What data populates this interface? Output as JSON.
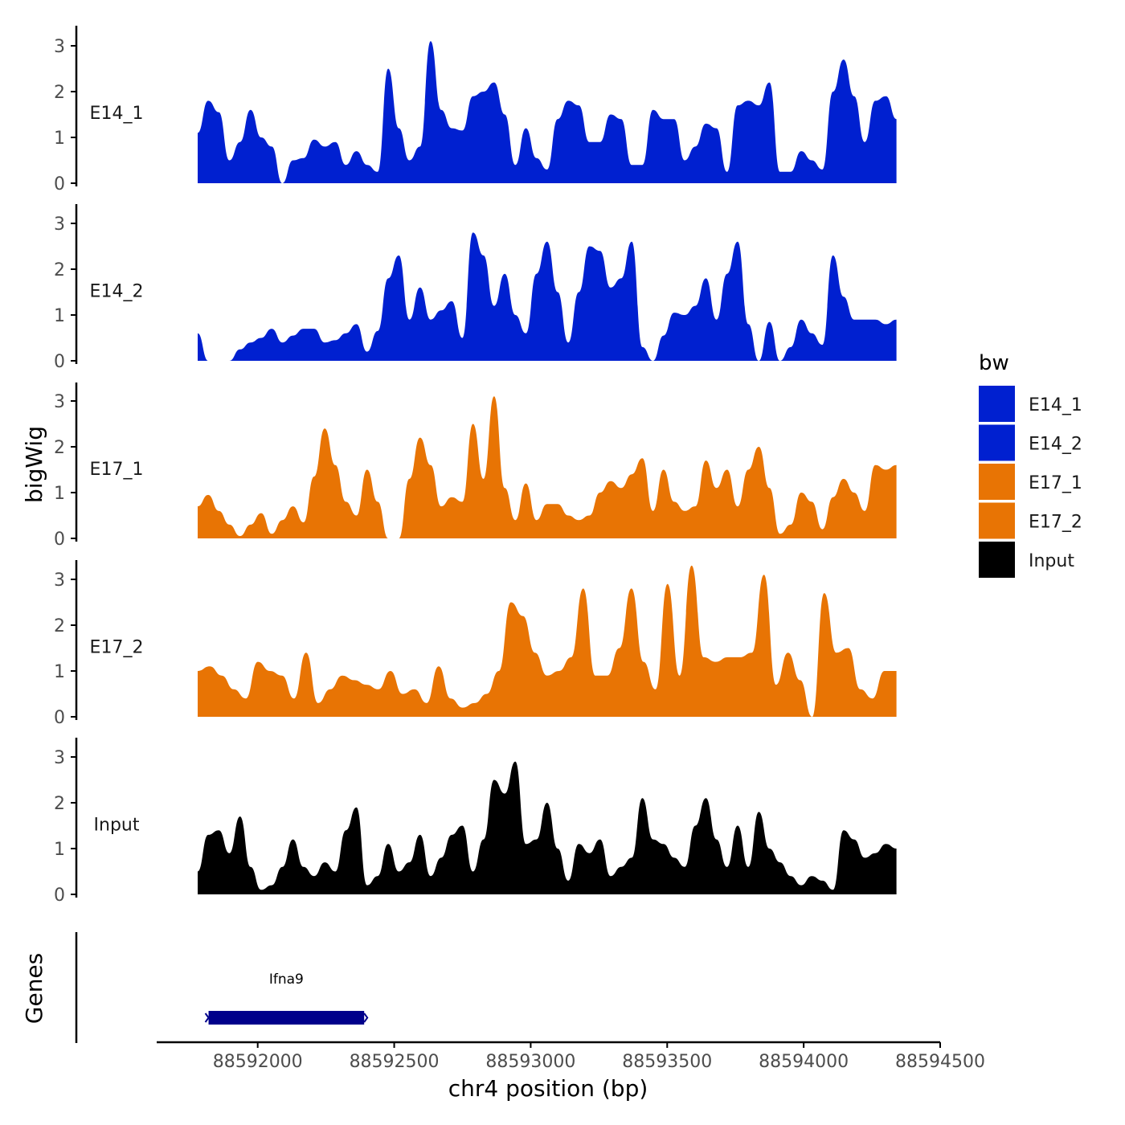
{
  "chart_data": {
    "type": "area",
    "title": "",
    "xlabel": "chr4 position (bp)",
    "ylabel": "bigWig",
    "genes_label": "Genes",
    "xlim": [
      88591630,
      88594500
    ],
    "x_ticks": [
      88592000,
      88592500,
      88593000,
      88593500,
      88594000,
      88594500
    ],
    "x_tick_labels": [
      "88592000",
      "88592500",
      "88593000",
      "88593500",
      "88594000",
      "88594500"
    ],
    "ylim": [
      0,
      3.4
    ],
    "y_ticks": [
      0,
      1,
      2,
      3
    ],
    "y_tick_labels": [
      "0",
      "1",
      "2",
      "3"
    ],
    "series_x_range": [
      88591780,
      88594340
    ],
    "legend": {
      "title": "bw",
      "position": "right",
      "entries": [
        {
          "label": "E14_1",
          "color": "#0020D0"
        },
        {
          "label": "E14_2",
          "color": "#0020D0"
        },
        {
          "label": "E17_1",
          "color": "#E87404"
        },
        {
          "label": "E17_2",
          "color": "#E87404"
        },
        {
          "label": "Input",
          "color": "#000000"
        }
      ]
    },
    "series": [
      {
        "name": "E14_1",
        "color": "#0020D0",
        "values": [
          1.1,
          1.8,
          1.55,
          0.5,
          0.9,
          1.6,
          1.0,
          0.8,
          0.0,
          0.5,
          0.55,
          0.95,
          0.8,
          0.9,
          0.4,
          0.7,
          0.4,
          0.25,
          2.5,
          1.2,
          0.5,
          0.8,
          3.1,
          1.6,
          1.2,
          1.15,
          1.9,
          2.0,
          2.2,
          1.5,
          0.4,
          1.2,
          0.55,
          0.3,
          1.4,
          1.8,
          1.7,
          0.9,
          0.9,
          1.5,
          1.4,
          0.4,
          0.4,
          1.6,
          1.4,
          1.4,
          0.5,
          0.8,
          1.3,
          1.2,
          0.25,
          1.7,
          1.8,
          1.7,
          2.2,
          0.25,
          0.25,
          0.7,
          0.5,
          0.3,
          2.0,
          2.7,
          1.9,
          0.9,
          1.8,
          1.9,
          1.4
        ]
      },
      {
        "name": "E14_2",
        "color": "#0020D0",
        "values": [
          0.6,
          0.0,
          0.0,
          0.0,
          0.25,
          0.4,
          0.5,
          0.7,
          0.4,
          0.55,
          0.7,
          0.7,
          0.4,
          0.45,
          0.6,
          0.8,
          0.2,
          0.65,
          1.8,
          2.3,
          0.9,
          1.6,
          0.9,
          1.1,
          1.3,
          0.5,
          2.8,
          2.3,
          1.2,
          1.9,
          1.0,
          0.6,
          1.9,
          2.6,
          1.5,
          0.4,
          1.5,
          2.5,
          2.4,
          1.6,
          1.8,
          2.6,
          0.3,
          0.0,
          0.55,
          1.05,
          1.0,
          1.2,
          1.8,
          0.9,
          1.9,
          2.6,
          0.8,
          0.0,
          0.85,
          0.0,
          0.3,
          0.9,
          0.6,
          0.35,
          2.3,
          1.4,
          0.9,
          0.9,
          0.9,
          0.8,
          0.9
        ]
      },
      {
        "name": "E17_1",
        "color": "#E87404",
        "values": [
          0.7,
          0.95,
          0.6,
          0.3,
          0.05,
          0.3,
          0.55,
          0.1,
          0.4,
          0.7,
          0.35,
          1.35,
          2.4,
          1.6,
          0.8,
          0.5,
          1.5,
          0.8,
          0.0,
          0.0,
          1.3,
          2.2,
          1.6,
          0.7,
          0.9,
          0.8,
          2.5,
          1.3,
          3.1,
          1.1,
          0.4,
          1.2,
          0.4,
          0.75,
          0.75,
          0.5,
          0.4,
          0.5,
          1.0,
          1.25,
          1.1,
          1.4,
          1.75,
          0.6,
          1.5,
          0.8,
          0.6,
          0.7,
          1.7,
          1.1,
          1.5,
          0.7,
          1.5,
          2.0,
          1.1,
          0.1,
          0.3,
          1.0,
          0.8,
          0.2,
          0.9,
          1.3,
          1.0,
          0.6,
          1.6,
          1.5,
          1.6
        ]
      },
      {
        "name": "E17_2",
        "color": "#E87404",
        "values": [
          1.0,
          1.1,
          0.9,
          0.6,
          0.4,
          1.2,
          1.0,
          0.9,
          0.4,
          1.4,
          0.3,
          0.6,
          0.9,
          0.8,
          0.7,
          0.6,
          1.0,
          0.5,
          0.6,
          0.3,
          1.1,
          0.4,
          0.2,
          0.3,
          0.5,
          1.0,
          2.5,
          2.2,
          1.4,
          0.9,
          1.0,
          1.3,
          2.8,
          0.9,
          0.9,
          1.5,
          2.8,
          1.2,
          0.6,
          2.9,
          0.9,
          3.3,
          1.3,
          1.2,
          1.3,
          1.3,
          1.4,
          3.1,
          0.7,
          1.4,
          0.8,
          0.0,
          2.7,
          1.4,
          1.5,
          0.6,
          0.4,
          1.0,
          1.0
        ]
      },
      {
        "name": "Input",
        "color": "#000000",
        "values": [
          0.5,
          1.3,
          1.4,
          0.9,
          1.7,
          0.6,
          0.1,
          0.2,
          0.6,
          1.2,
          0.6,
          0.4,
          0.7,
          0.5,
          1.4,
          1.9,
          0.2,
          0.4,
          1.1,
          0.5,
          0.7,
          1.3,
          0.4,
          0.8,
          1.3,
          1.5,
          0.5,
          1.2,
          2.5,
          2.2,
          2.9,
          1.1,
          1.2,
          2.0,
          1.0,
          0.3,
          1.1,
          0.9,
          1.2,
          0.4,
          0.6,
          0.8,
          2.1,
          1.2,
          1.1,
          0.8,
          0.6,
          1.5,
          2.1,
          1.2,
          0.6,
          1.5,
          0.6,
          1.8,
          1.0,
          0.7,
          0.4,
          0.2,
          0.4,
          0.3,
          0.1,
          1.4,
          1.2,
          0.8,
          0.9,
          1.1,
          1.0
        ]
      }
    ],
    "genes": [
      {
        "name": "Ifna9",
        "start": 88591820,
        "end": 88592390,
        "color": "#00008B"
      }
    ]
  }
}
